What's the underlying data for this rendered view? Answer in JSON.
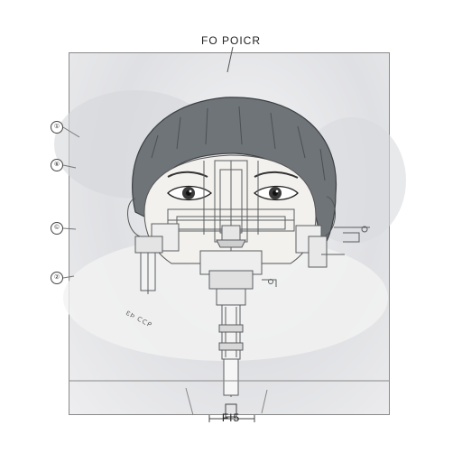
{
  "diagram": {
    "title": "FO POICR",
    "caption": "FI5",
    "callouts": [
      {
        "label": "①"
      },
      {
        "label": "⑥"
      },
      {
        "label": "©"
      },
      {
        "label": "②"
      }
    ],
    "side_note": "ƐÞ ᑕᑕᑭ"
  }
}
